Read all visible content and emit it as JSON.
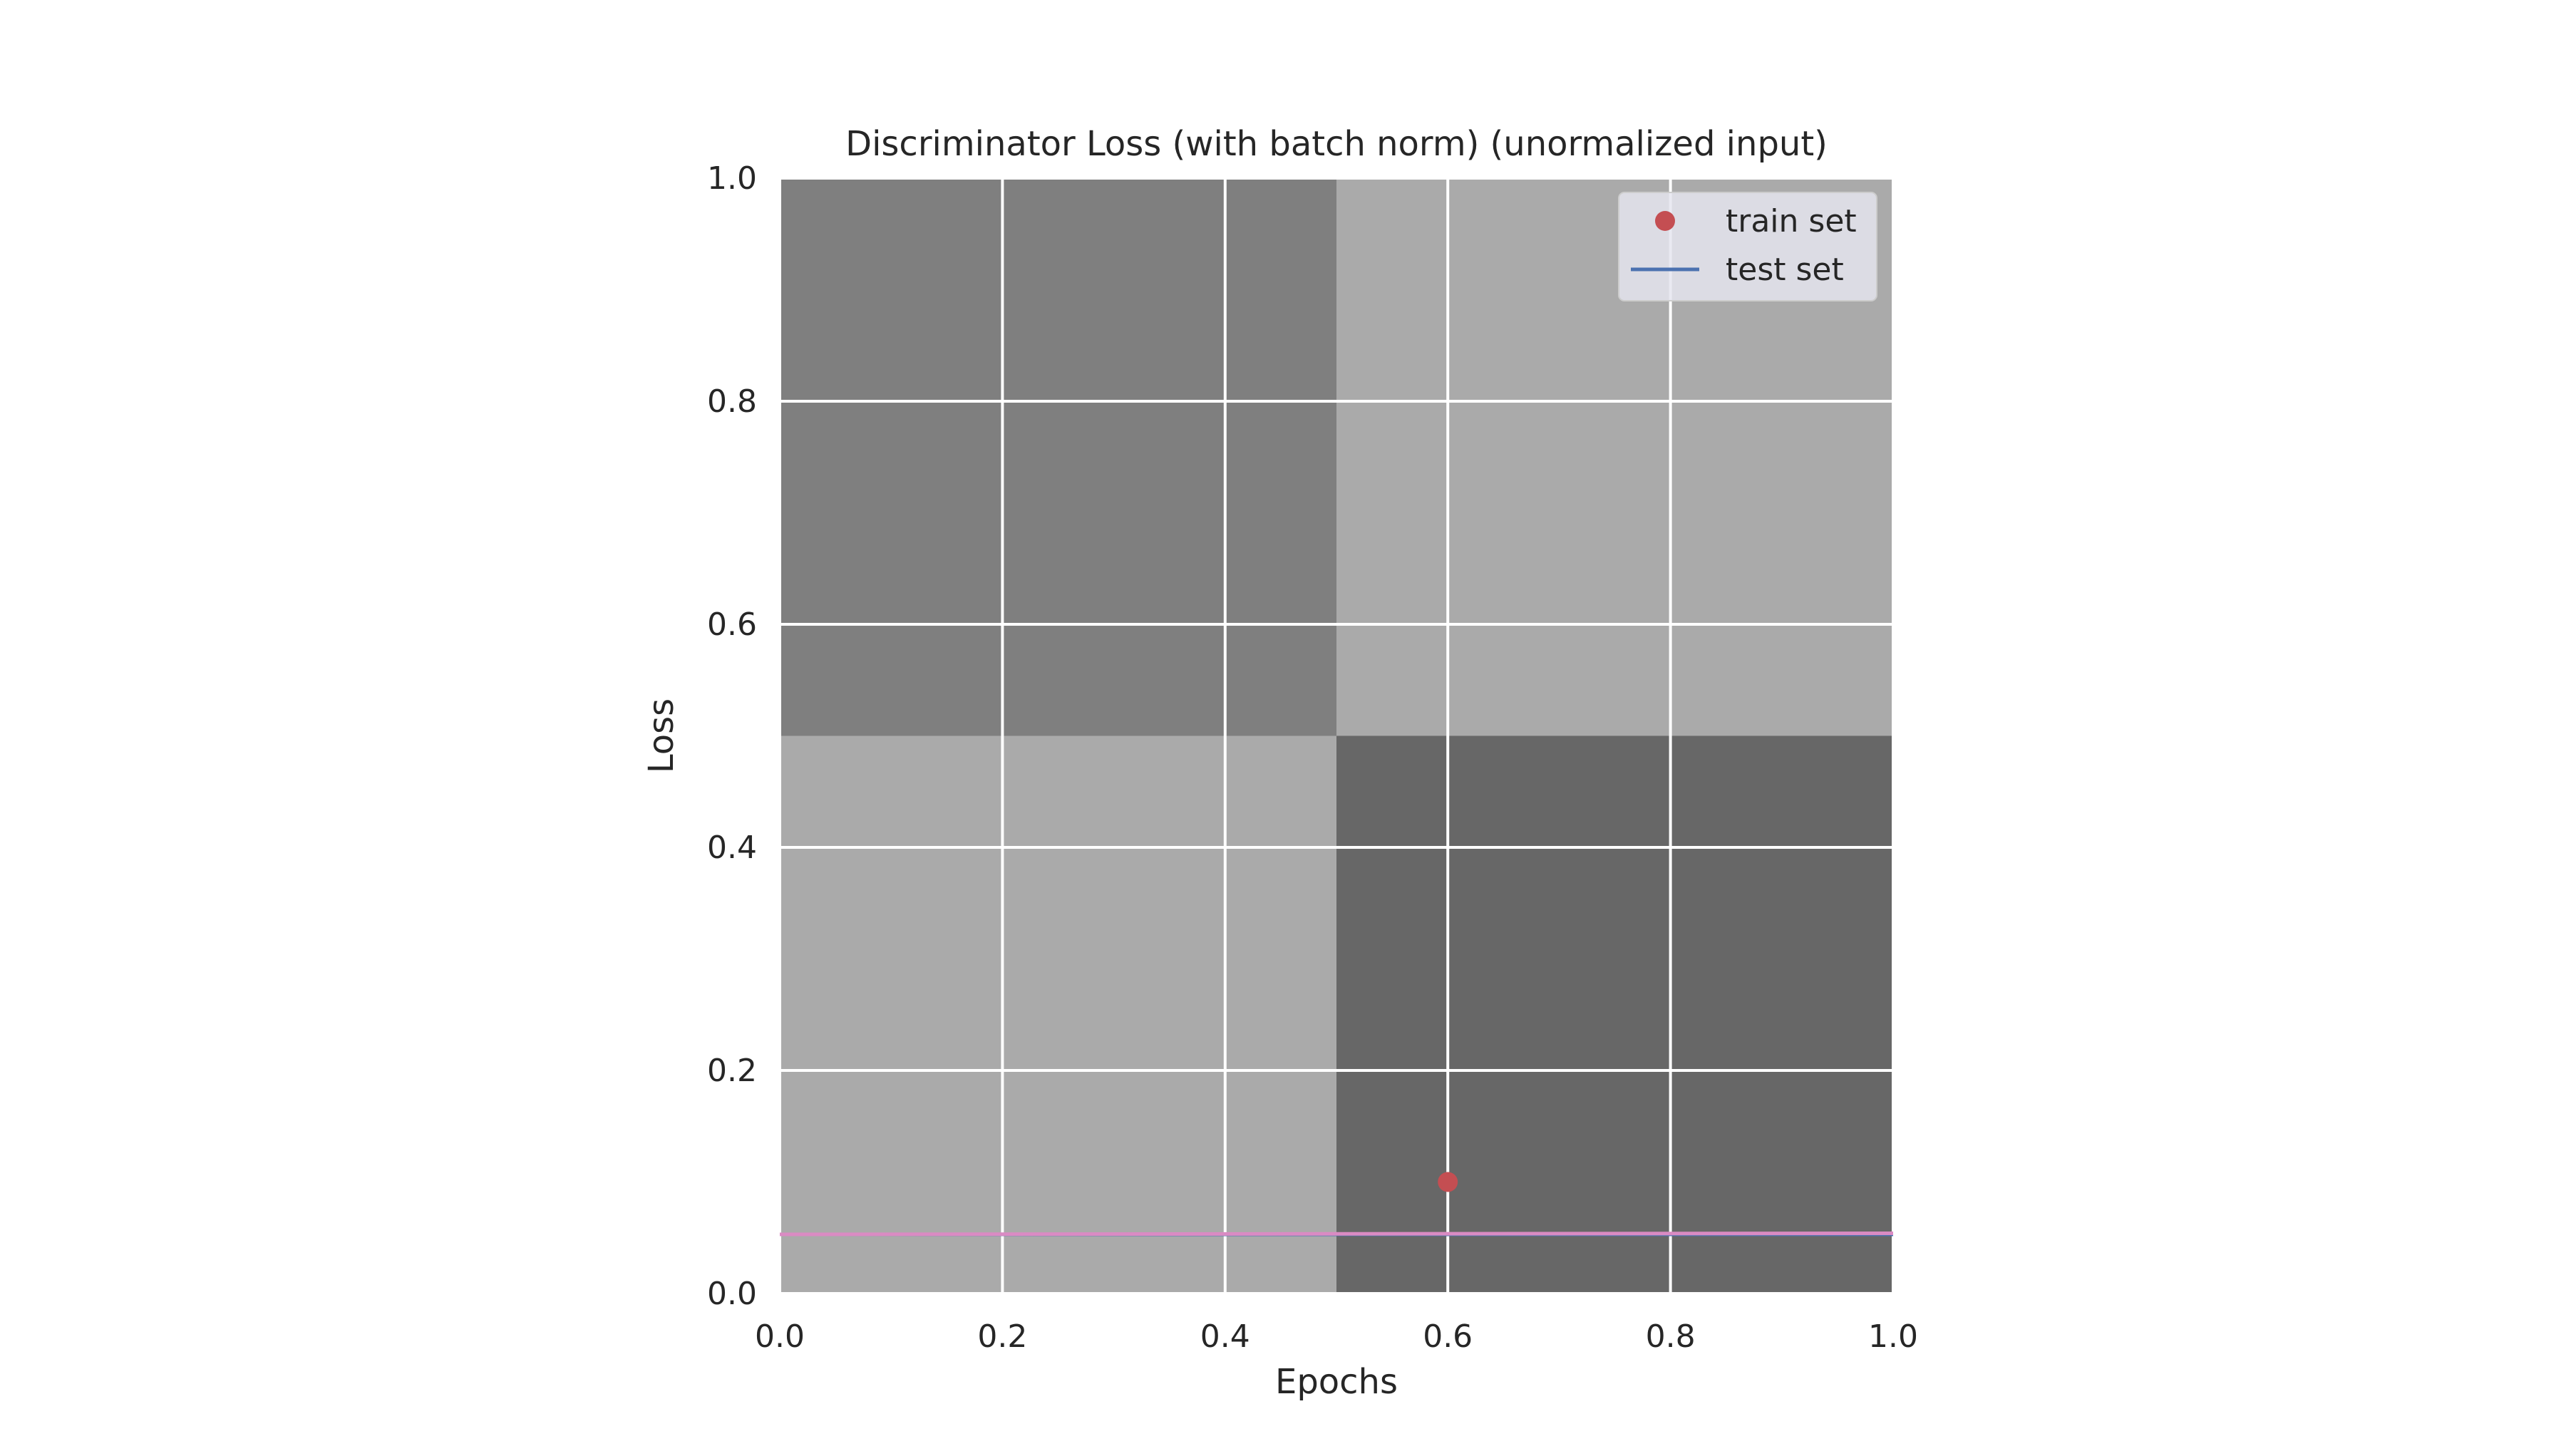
{
  "chart_data": {
    "type": "scatter",
    "title": "Discriminator Loss (with batch norm) (unormalized input)",
    "xlabel": "Epochs",
    "ylabel": "Loss",
    "xlim": [
      0.0,
      1.0
    ],
    "ylim": [
      0.0,
      1.0
    ],
    "x_ticks": [
      "0.0",
      "0.2",
      "0.4",
      "0.6",
      "0.8",
      "1.0"
    ],
    "y_ticks": [
      "0.0",
      "0.2",
      "0.4",
      "0.6",
      "0.8",
      "1.0"
    ],
    "grid": true,
    "legend_position": "top-right",
    "background_cells": [
      {
        "x": [
          0.0,
          0.5
        ],
        "y": [
          0.5,
          1.0
        ],
        "color": "#7f7f7f"
      },
      {
        "x": [
          0.5,
          1.0
        ],
        "y": [
          0.5,
          1.0
        ],
        "color": "#aaaaaa"
      },
      {
        "x": [
          0.0,
          0.5
        ],
        "y": [
          0.0,
          0.5
        ],
        "color": "#aaaaaa"
      },
      {
        "x": [
          0.5,
          1.0
        ],
        "y": [
          0.0,
          0.5
        ],
        "color": "#676767"
      }
    ],
    "series": [
      {
        "name": "train set",
        "kind": "points",
        "color": "#c44e52",
        "x": [
          0.6
        ],
        "y": [
          0.1
        ]
      },
      {
        "name": "test set",
        "kind": "line",
        "color": "#4c72b0",
        "x": [
          0.0,
          1.0
        ],
        "y": [
          0.053,
          0.053
        ]
      }
    ],
    "overlay_line": {
      "kind": "line",
      "color": "#da8bc3",
      "x": [
        0.0,
        1.0
      ],
      "y": [
        0.053,
        0.054
      ]
    }
  }
}
